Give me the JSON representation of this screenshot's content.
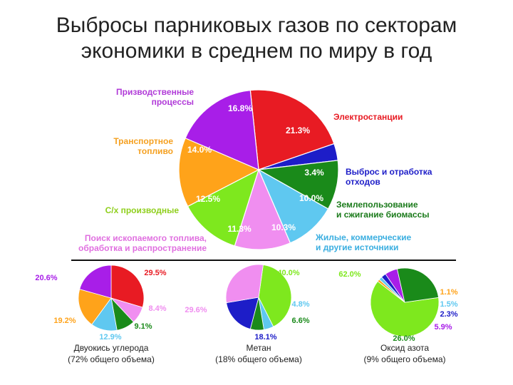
{
  "title_line1": "Выбросы парниковых газов по секторам",
  "title_line2": "экономики в среднем по миру в год",
  "chart_data": [
    {
      "type": "pie",
      "title": "",
      "slices": [
        {
          "category": "Электростанции",
          "value": 21.3,
          "label": "21.3%",
          "color": "#e81b23",
          "legend_color": "#e81b23"
        },
        {
          "category": "Выброс и отработка отходов",
          "value": 3.4,
          "label": "3.4%",
          "color": "#1d1dc8",
          "legend_color": "#1d1dc8"
        },
        {
          "category": "Землепользование и сжигание биомассы",
          "value": 10.0,
          "label": "10.0%",
          "color": "#1a8a1a",
          "legend_color": "#1a7a1a"
        },
        {
          "category": "Жилые, коммерческие и другие источники",
          "value": 10.3,
          "label": "10.3%",
          "color": "#5fc8f0",
          "legend_color": "#3aaee0"
        },
        {
          "category": "Поиск ископаемого топлива, обработка и распространение",
          "value": 11.3,
          "label": "11.3%",
          "color": "#f08ef0",
          "legend_color": "#e070e0"
        },
        {
          "category": "С/х производные",
          "value": 12.5,
          "label": "12.5%",
          "color": "#7ee81e",
          "legend_color": "#8fcf1c"
        },
        {
          "category": "Транспортное топливо",
          "value": 14.0,
          "label": "14.0%",
          "color": "#ffa31a",
          "legend_color": "#f5a020"
        },
        {
          "category": "Призводственные процессы",
          "value": 16.8,
          "label": "16.8%",
          "color": "#a81ee8",
          "legend_color": "#b03ad8"
        }
      ]
    },
    {
      "type": "pie",
      "title": "Двуокись углерода",
      "subtitle": "(72% общего объема)",
      "slices": [
        {
          "value": 29.5,
          "label": "29.5%",
          "color": "#e81b23"
        },
        {
          "value": 8.4,
          "label": "8.4%",
          "color": "#f08ef0"
        },
        {
          "value": 9.1,
          "label": "9.1%",
          "color": "#1a8a1a"
        },
        {
          "value": 12.9,
          "label": "12.9%",
          "color": "#5fc8f0"
        },
        {
          "value": 19.2,
          "label": "19.2%",
          "color": "#ffa31a"
        },
        {
          "value": 20.6,
          "label": "20.6%",
          "color": "#a81ee8"
        }
      ]
    },
    {
      "type": "pie",
      "title": "Метан",
      "subtitle": "(18% общего объема)",
      "slices": [
        {
          "value": 40.0,
          "label": "40.0%",
          "color": "#7ee81e"
        },
        {
          "value": 4.8,
          "label": "4.8%",
          "color": "#5fc8f0"
        },
        {
          "value": 6.6,
          "label": "6.6%",
          "color": "#1a8a1a"
        },
        {
          "value": 18.1,
          "label": "18.1%",
          "color": "#1d1dc8"
        },
        {
          "value": 29.6,
          "label": "29.6%",
          "color": "#f08ef0"
        }
      ]
    },
    {
      "type": "pie",
      "title": "Оксид азота",
      "subtitle": "(9% общего объема)",
      "slices": [
        {
          "value": 62.0,
          "label": "62.0%",
          "color": "#7ee81e"
        },
        {
          "value": 1.1,
          "label": "1.1%",
          "color": "#ffa31a"
        },
        {
          "value": 1.5,
          "label": "1.5%",
          "color": "#5fc8f0"
        },
        {
          "value": 2.3,
          "label": "2.3%",
          "color": "#1d1dc8"
        },
        {
          "value": 5.9,
          "label": "5.9%",
          "color": "#a81ee8"
        },
        {
          "value": 26.0,
          "label": "26.0%",
          "color": "#1a8a1a"
        }
      ]
    }
  ]
}
